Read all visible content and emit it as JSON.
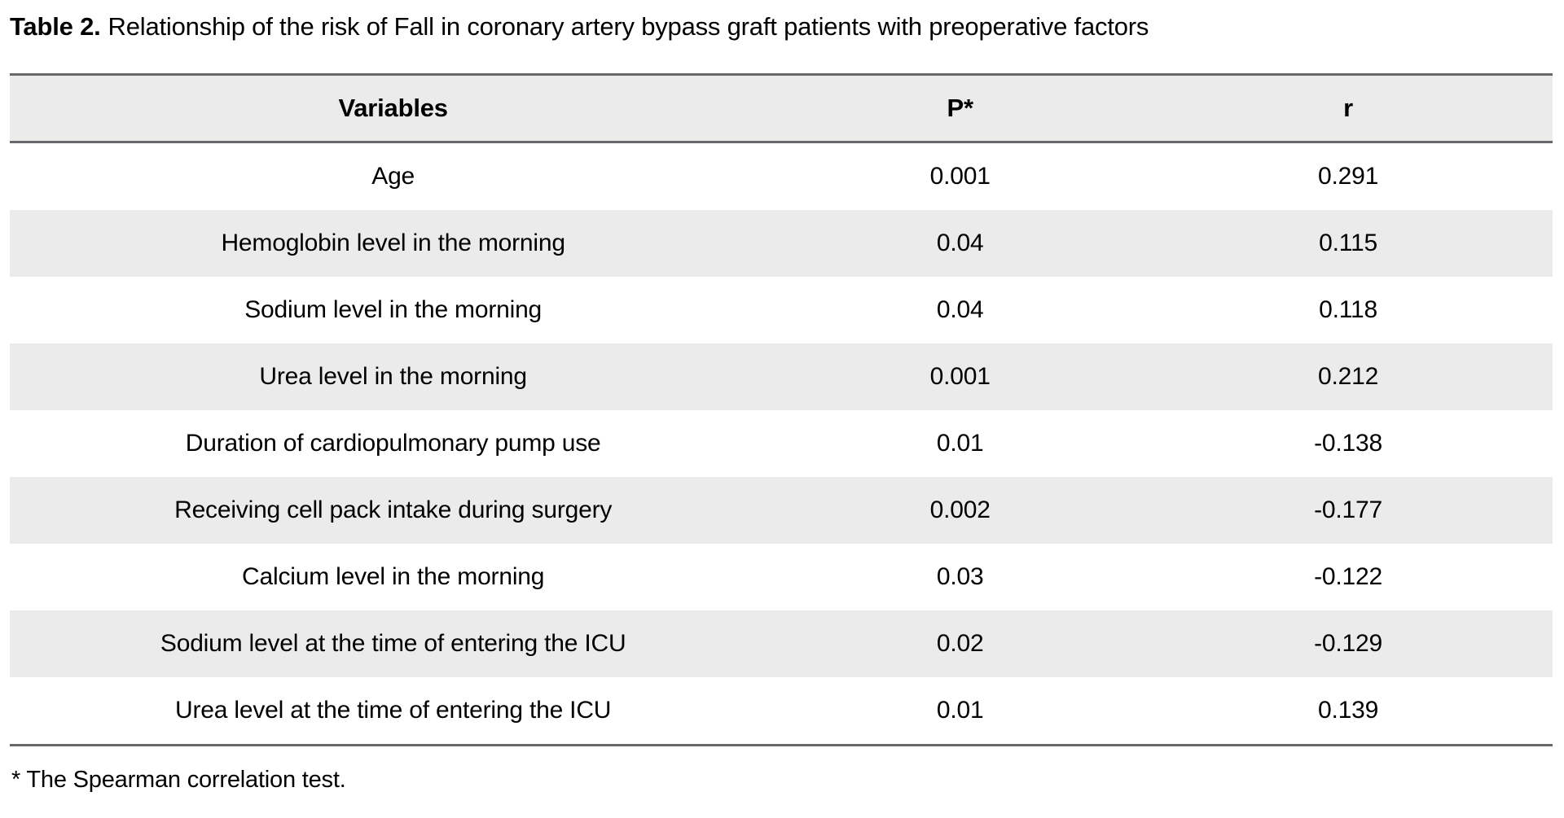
{
  "title": {
    "label": "Table 2.",
    "text": "Relationship of the risk of Fall in coronary artery bypass graft patients with preoperative factors"
  },
  "table": {
    "columns": [
      {
        "key": "variable",
        "label": "Variables"
      },
      {
        "key": "p",
        "label": "P*"
      },
      {
        "key": "r",
        "label": "r"
      }
    ],
    "rows": [
      {
        "variable": "Age",
        "p": "0.001",
        "r": "0.291"
      },
      {
        "variable": "Hemoglobin level in the morning",
        "p": "0.04",
        "r": "0.115"
      },
      {
        "variable": "Sodium level in the morning",
        "p": "0.04",
        "r": "0.118"
      },
      {
        "variable": "Urea level in the morning",
        "p": "0.001",
        "r": "0.212"
      },
      {
        "variable": "Duration of cardiopulmonary pump use",
        "p": "0.01",
        "r": "-0.138"
      },
      {
        "variable": "Receiving cell pack intake during surgery",
        "p": "0.002",
        "r": "-0.177"
      },
      {
        "variable": "Calcium level in the morning",
        "p": "0.03",
        "r": "-0.122"
      },
      {
        "variable": "Sodium level at the time of entering the ICU",
        "p": "0.02",
        "r": "-0.129"
      },
      {
        "variable": "Urea level at the time of entering the ICU",
        "p": "0.01",
        "r": "0.139"
      }
    ]
  },
  "footnote": "* The Spearman correlation test.",
  "colors": {
    "page_background": "#ffffff",
    "header_background": "#ebebeb",
    "row_stripe": "#ebebeb",
    "rule": "#67686b",
    "text": "#000000"
  }
}
